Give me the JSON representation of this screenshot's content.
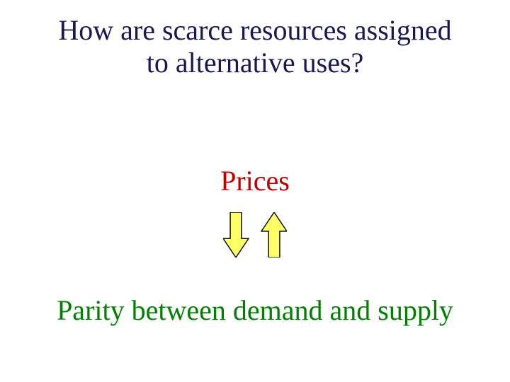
{
  "title": {
    "line1": "How are scarce resources assigned",
    "line2": "to alternative uses?",
    "color": "#1a1752",
    "fontsize": 40
  },
  "prices": {
    "text": "Prices",
    "color": "#c00000",
    "fontsize": 40
  },
  "parity": {
    "text": "Parity between demand and supply",
    "color": "#008000",
    "fontsize": 40
  },
  "arrows": {
    "fill": "#ffff66",
    "stroke": "#000000",
    "stroke_width": 1.4,
    "width": 36,
    "height": 64,
    "gap": 18
  }
}
